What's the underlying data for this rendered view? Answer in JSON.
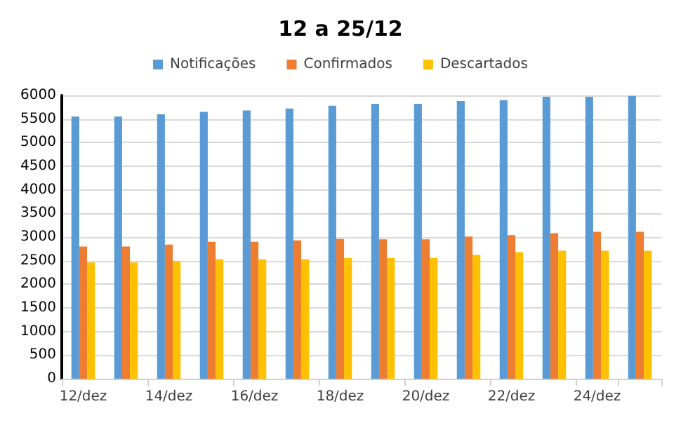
{
  "chart_data": {
    "type": "bar",
    "title": "12 a 25/12",
    "categories": [
      "12/dez",
      null,
      "14/dez",
      null,
      "16/dez",
      null,
      "18/dez",
      null,
      "20/dez",
      null,
      "22/dez",
      null,
      "24/dez",
      null
    ],
    "series": [
      {
        "name": "Notificações",
        "color": "#5b9bd5",
        "values": [
          5550,
          5550,
          5600,
          5650,
          5680,
          5720,
          5780,
          5820,
          5820,
          5880,
          5900,
          5970,
          5970,
          5990
        ]
      },
      {
        "name": "Confirmados",
        "color": "#ed7d31",
        "values": [
          2800,
          2800,
          2840,
          2900,
          2900,
          2930,
          2960,
          2950,
          2950,
          3010,
          3040,
          3080,
          3110,
          3110
        ]
      },
      {
        "name": "Descartados",
        "color": "#ffc000",
        "values": [
          2460,
          2460,
          2490,
          2530,
          2530,
          2530,
          2560,
          2560,
          2560,
          2620,
          2680,
          2710,
          2710,
          2710
        ]
      }
    ],
    "ylim": [
      0,
      6000
    ],
    "yticks": [
      0,
      500,
      1000,
      1500,
      2000,
      2500,
      3000,
      3500,
      4000,
      4500,
      5000,
      5500,
      6000
    ],
    "grid": "y",
    "legend": "top"
  }
}
